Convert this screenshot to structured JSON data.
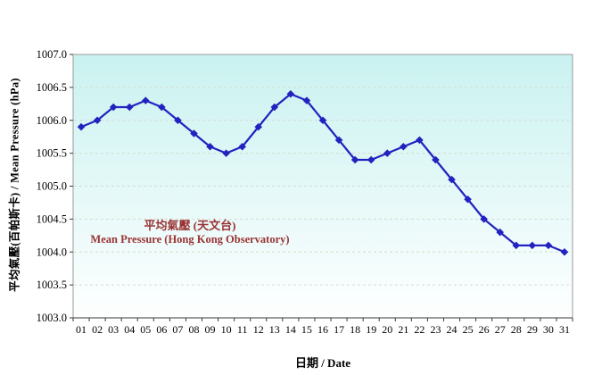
{
  "chart_data": {
    "type": "line",
    "title": "",
    "x": [
      "01",
      "02",
      "03",
      "04",
      "05",
      "06",
      "07",
      "08",
      "09",
      "10",
      "11",
      "12",
      "13",
      "14",
      "15",
      "16",
      "17",
      "18",
      "19",
      "20",
      "21",
      "22",
      "23",
      "24",
      "25",
      "26",
      "27",
      "28",
      "29",
      "30",
      "31"
    ],
    "series": [
      {
        "name": "平均氣壓 (天文台) / Mean Pressure (Hong Kong Observatory)",
        "values": [
          1005.9,
          1006.0,
          1006.2,
          1006.2,
          1006.3,
          1006.2,
          1006.0,
          1005.8,
          1005.6,
          1005.5,
          1005.6,
          1005.9,
          1006.2,
          1006.4,
          1006.3,
          1006.0,
          1005.7,
          1005.4,
          1005.4,
          1005.5,
          1005.6,
          1005.7,
          1005.4,
          1005.1,
          1004.8,
          1004.5,
          1004.3,
          1004.1,
          1004.1,
          1004.1,
          1004.0
        ],
        "color": "#2222c0",
        "marker": "diamond"
      }
    ],
    "xlabel": "日期 / Date",
    "ylabel": "平均氣壓(百帕斯卡) / Mean Pressure (hPa)",
    "ylim": [
      1003.0,
      1007.0
    ],
    "ytick_step": 0.5,
    "yticks": [
      "1007.0",
      "1006.5",
      "1006.0",
      "1005.5",
      "1005.0",
      "1004.5",
      "1004.0",
      "1003.5",
      "1003.0"
    ],
    "legend": {
      "line1": "平均氣壓 (天文台)",
      "line2": "Mean Pressure (Hong Kong Observatory)",
      "color": "#993333",
      "position": "inside-left"
    },
    "grid": {
      "horizontal": true,
      "style": "dashed",
      "color": "#d6dbd0"
    },
    "plot_bg": {
      "top": "#c9f2f0",
      "bottom": "#feffff"
    },
    "border_color": "#9a9a9a",
    "axis_color": "#3a3a3a",
    "tick_label_color": "#000000"
  }
}
